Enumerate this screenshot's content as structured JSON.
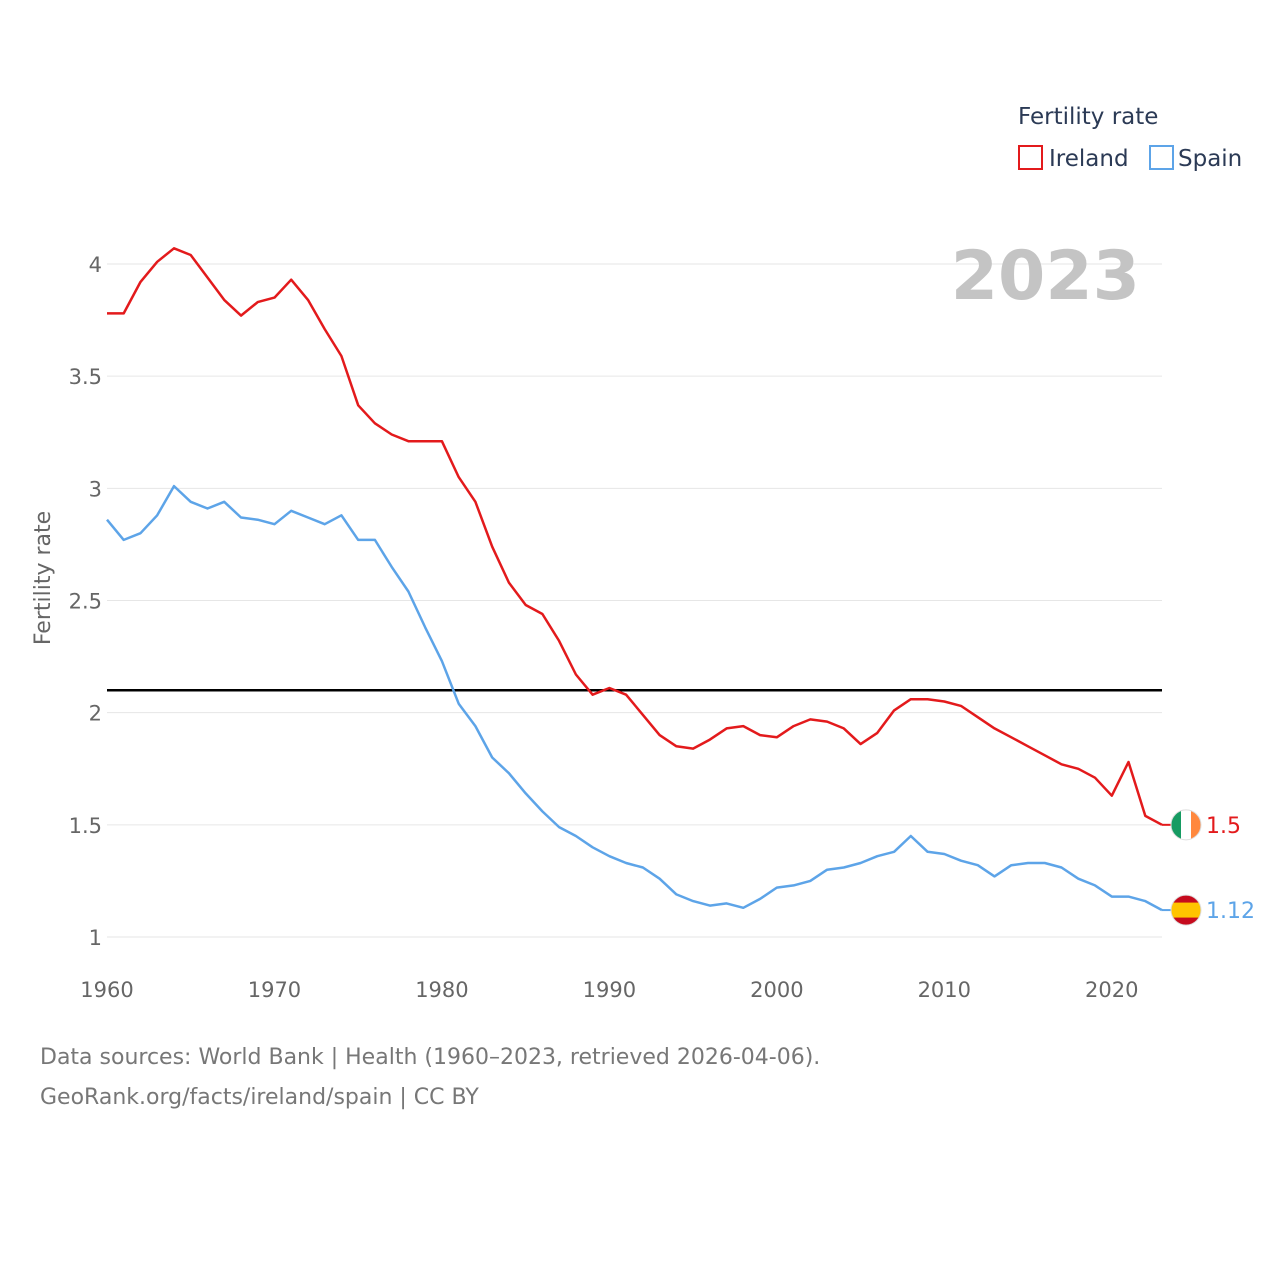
{
  "chart_data": {
    "type": "line",
    "title": "2023",
    "xlabel": "",
    "ylabel": "Fertility rate",
    "xlim": [
      1960,
      2023
    ],
    "ylim": [
      1,
      4.1
    ],
    "xticks": [
      1960,
      1970,
      1980,
      1990,
      2000,
      2010,
      2020
    ],
    "yticks": [
      1,
      1.5,
      2,
      2.5,
      3,
      3.5,
      4
    ],
    "ytick_labels": [
      "1",
      "1.5",
      "2",
      "2.5",
      "3",
      "3.5",
      "4"
    ],
    "grid": true,
    "reference_line": {
      "y": 2.1,
      "color": "#000000"
    },
    "legend": {
      "title": "Fertility rate",
      "position": "top-right"
    },
    "x": [
      1960,
      1961,
      1962,
      1963,
      1964,
      1965,
      1966,
      1967,
      1968,
      1969,
      1970,
      1971,
      1972,
      1973,
      1974,
      1975,
      1976,
      1977,
      1978,
      1979,
      1980,
      1981,
      1982,
      1983,
      1984,
      1985,
      1986,
      1987,
      1988,
      1989,
      1990,
      1991,
      1992,
      1993,
      1994,
      1995,
      1996,
      1997,
      1998,
      1999,
      2000,
      2001,
      2002,
      2003,
      2004,
      2005,
      2006,
      2007,
      2008,
      2009,
      2010,
      2011,
      2012,
      2013,
      2014,
      2015,
      2016,
      2017,
      2018,
      2019,
      2020,
      2021,
      2022,
      2023
    ],
    "series": [
      {
        "name": "Ireland",
        "color": "#e31a1c",
        "end_label": "1.5",
        "flag": "ireland-flag-icon",
        "values": [
          3.78,
          3.78,
          3.92,
          4.01,
          4.07,
          4.04,
          3.94,
          3.84,
          3.77,
          3.83,
          3.85,
          3.93,
          3.84,
          3.71,
          3.59,
          3.37,
          3.29,
          3.24,
          3.21,
          3.21,
          3.21,
          3.05,
          2.94,
          2.74,
          2.58,
          2.48,
          2.44,
          2.32,
          2.17,
          2.08,
          2.11,
          2.08,
          1.99,
          1.9,
          1.85,
          1.84,
          1.88,
          1.93,
          1.94,
          1.9,
          1.89,
          1.94,
          1.97,
          1.96,
          1.93,
          1.86,
          1.91,
          2.01,
          2.06,
          2.06,
          2.05,
          2.03,
          1.98,
          1.93,
          1.89,
          1.85,
          1.81,
          1.77,
          1.75,
          1.71,
          1.63,
          1.78,
          1.54,
          1.5
        ]
      },
      {
        "name": "Spain",
        "color": "#5da4e8",
        "end_label": "1.12",
        "flag": "spain-flag-icon",
        "values": [
          2.86,
          2.77,
          2.8,
          2.88,
          3.01,
          2.94,
          2.91,
          2.94,
          2.87,
          2.86,
          2.84,
          2.9,
          2.87,
          2.84,
          2.88,
          2.77,
          2.77,
          2.65,
          2.54,
          2.38,
          2.23,
          2.04,
          1.94,
          1.8,
          1.73,
          1.64,
          1.56,
          1.49,
          1.45,
          1.4,
          1.36,
          1.33,
          1.31,
          1.26,
          1.19,
          1.16,
          1.14,
          1.15,
          1.13,
          1.17,
          1.22,
          1.23,
          1.25,
          1.3,
          1.31,
          1.33,
          1.36,
          1.38,
          1.45,
          1.38,
          1.37,
          1.34,
          1.32,
          1.27,
          1.32,
          1.33,
          1.33,
          1.31,
          1.26,
          1.23,
          1.18,
          1.18,
          1.16,
          1.12
        ]
      }
    ]
  },
  "footer": {
    "source_line": "Data sources: World Bank | Health (1960–2023, retrieved 2026-04-06).",
    "url_line": "GeoRank.org/facts/ireland/spain | CC BY"
  }
}
